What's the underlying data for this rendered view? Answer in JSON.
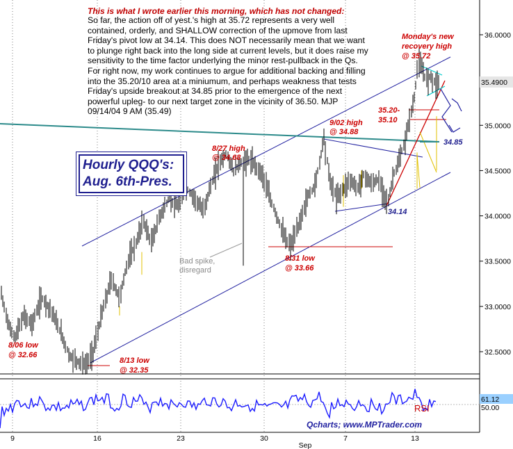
{
  "chart_data": {
    "type": "candlestick",
    "title_box": [
      "Hourly QQQ's:",
      "Aug. 6th-Pres."
    ],
    "note_title": "This is what I wrote earlier this morning, which has not changed:",
    "note_text": "So far, the action off of yest.'s high at 35.72 represents a very well contained, orderly, and SHALLOW correction of the upmove from last Friday's pivot low at 34.14. This does NOT necessarily mean that we want to plunge right back into the long side at current levels, but it does raise my sensitivity to the time factor underlying the minor rest-pullback in the Qs. For right now, my work continues to argue for additional backing and filling into the 35.20/10 area at a miniumum, and perhaps weakness that tests Friday's upside breakout at 34.85 prior to the emergence of the next powerful upleg- to our next target zone in the vicinity of 36.50. MJP 09/14/04  9 AM (35.49)",
    "ylim": [
      32.2,
      36.3
    ],
    "y_ticks": [
      "36.0000",
      "35.5000",
      "35.0000",
      "34.5000",
      "34.0000",
      "33.5000",
      "33.0000",
      "32.5000"
    ],
    "x_ticks": [
      "9",
      "16",
      "23",
      "30",
      "7",
      "13"
    ],
    "x_month_label": "Sep",
    "last_price": "35.4900",
    "annotations": {
      "aug6": [
        "8/06 low",
        "@ 32.66"
      ],
      "aug13": [
        "8/13 low",
        "@ 32.35"
      ],
      "aug27": [
        "8/27 high",
        "@ 34.68"
      ],
      "aug31": [
        "8/31 low",
        "@ 33.66"
      ],
      "sep2": [
        "9/02 high",
        "@ 34.88"
      ],
      "monday": [
        "Monday's new",
        "recovery high",
        "@ 35.72"
      ],
      "lvl3520": "35.20-",
      "lvl3510": "35.10",
      "lvl3485": "34.85",
      "lvl3414": "34.14",
      "bad_spike": [
        "Bad spike,",
        "disregard"
      ]
    },
    "rsi": {
      "label": "RSI",
      "last_value": "61.12",
      "level_label": "50.00"
    },
    "credit": "Qcharts; www.MPTrader.com"
  }
}
